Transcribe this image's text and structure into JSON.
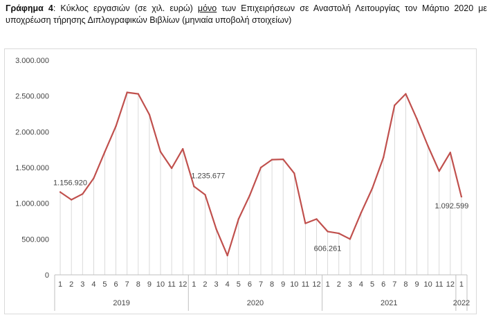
{
  "caption": {
    "label": "Γράφημα 4",
    "part1": ": Κύκλος εργασιών (σε χιλ. ευρώ) ",
    "emph": "μόνο",
    "part2": " των Επιχειρήσεων σε Αναστολή Λειτουργίας τον Μάρτιο 2020 με υποχρέωση τήρησης Διπλογραφικών Βιβλίων  (μηνιαία υποβολή στοιχείων)"
  },
  "chart_data": {
    "type": "line",
    "title": "",
    "xlabel": "",
    "ylabel": "",
    "ylim": [
      0,
      3000000
    ],
    "yticks": [
      0,
      500000,
      1000000,
      1500000,
      2000000,
      2500000,
      3000000
    ],
    "ytick_labels": [
      "0",
      "500.000",
      "1.000.000",
      "1.500.000",
      "2.000.000",
      "2.500.000",
      "3.000.000"
    ],
    "grid": false,
    "drop_lines": true,
    "line_color": "#c0504d",
    "categories": [
      "1",
      "2",
      "3",
      "4",
      "5",
      "6",
      "7",
      "8",
      "9",
      "10",
      "11",
      "12",
      "1",
      "2",
      "3",
      "4",
      "5",
      "6",
      "7",
      "8",
      "9",
      "10",
      "11",
      "12",
      "1",
      "2",
      "3",
      "4",
      "5",
      "6",
      "7",
      "8",
      "9",
      "10",
      "11",
      "12",
      "1"
    ],
    "groups": [
      {
        "label": "2019",
        "start": 0,
        "end": 11
      },
      {
        "label": "2020",
        "start": 12,
        "end": 23
      },
      {
        "label": "2021",
        "start": 24,
        "end": 35
      },
      {
        "label": "2022",
        "start": 36,
        "end": 36
      }
    ],
    "series": [
      {
        "values": [
          1156920,
          1050000,
          1130000,
          1350000,
          1720000,
          2080000,
          2550000,
          2530000,
          2240000,
          1720000,
          1490000,
          1760000,
          1235677,
          1120000,
          640000,
          270000,
          780000,
          1110000,
          1500000,
          1610000,
          1615000,
          1420000,
          720000,
          780000,
          606261,
          580000,
          500000,
          870000,
          1210000,
          1640000,
          2370000,
          2530000,
          2180000,
          1800000,
          1450000,
          1710000,
          1092599
        ]
      }
    ],
    "data_labels": [
      {
        "index": 0,
        "text": "1.156.920"
      },
      {
        "index": 12,
        "text": "1.235.677"
      },
      {
        "index": 24,
        "text": "606.261"
      },
      {
        "index": 36,
        "text": "1.092.599"
      }
    ]
  }
}
